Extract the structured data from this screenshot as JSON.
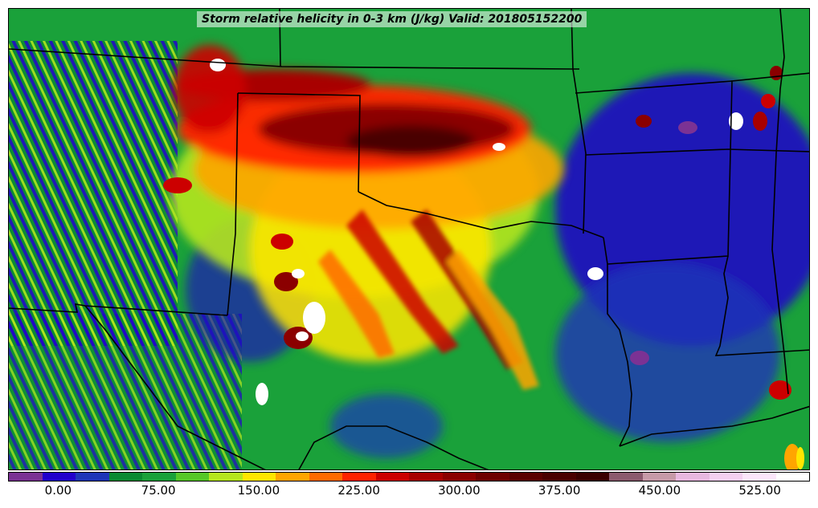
{
  "title": "Storm relative helicity in 0-3 km (J/kg) Valid: 201805152200",
  "colorbar": {
    "colors": [
      "#7b3294",
      "#2200cc",
      "#1e36b8",
      "#0a8a32",
      "#1aa13a",
      "#56c828",
      "#b5e61d",
      "#ffe600",
      "#ffa500",
      "#ff6a00",
      "#ff2200",
      "#cc0000",
      "#a80000",
      "#8b0000",
      "#6e0000",
      "#5a0000",
      "#4a0000",
      "#3a0000",
      "#8c5a6e",
      "#c79aa8",
      "#e8b8e0",
      "#f4d0f0",
      "#fbe6fa",
      "#ffffff"
    ],
    "tick_labels": [
      "0.00",
      "75.00",
      "150.00",
      "225.00",
      "300.00",
      "375.00",
      "450.00",
      "525.00"
    ],
    "tick_values": [
      0,
      75,
      150,
      225,
      300,
      375,
      450,
      525
    ],
    "range": [
      -37.5,
      562.5
    ],
    "units": "J/kg"
  },
  "map_data": {
    "region": "Southern US Plains",
    "field": "Storm relative helicity 0-3 km",
    "valid_time": "201805152200"
  }
}
